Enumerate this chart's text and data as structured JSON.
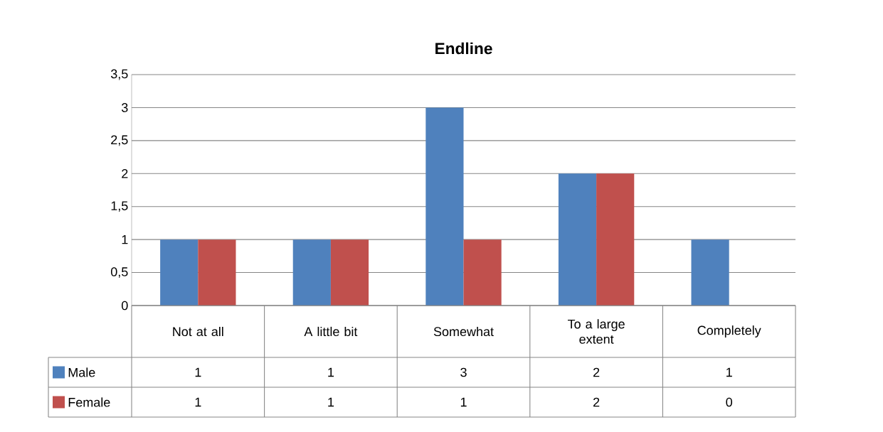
{
  "chart_data": {
    "type": "bar",
    "title": "Endline",
    "categories": [
      "Not at all",
      "A little bit",
      "Somewhat",
      "To a large extent",
      "Completely"
    ],
    "series": [
      {
        "name": "Male",
        "color": "#4f81bd",
        "values": [
          1,
          1,
          3,
          2,
          1
        ]
      },
      {
        "name": "Female",
        "color": "#c0504d",
        "values": [
          1,
          1,
          1,
          2,
          0
        ]
      }
    ],
    "ylim": [
      0,
      3.5
    ],
    "yticks": [
      0,
      {
        "value": 0.5,
        "label": "0,5"
      },
      1,
      {
        "value": 1.5,
        "label": "1,5"
      },
      2,
      {
        "value": 2.5,
        "label": "2,5"
      },
      3,
      {
        "value": 3.5,
        "label": "3,5"
      }
    ],
    "grid": "y",
    "legend": "bottom left",
    "data_labels": true
  }
}
